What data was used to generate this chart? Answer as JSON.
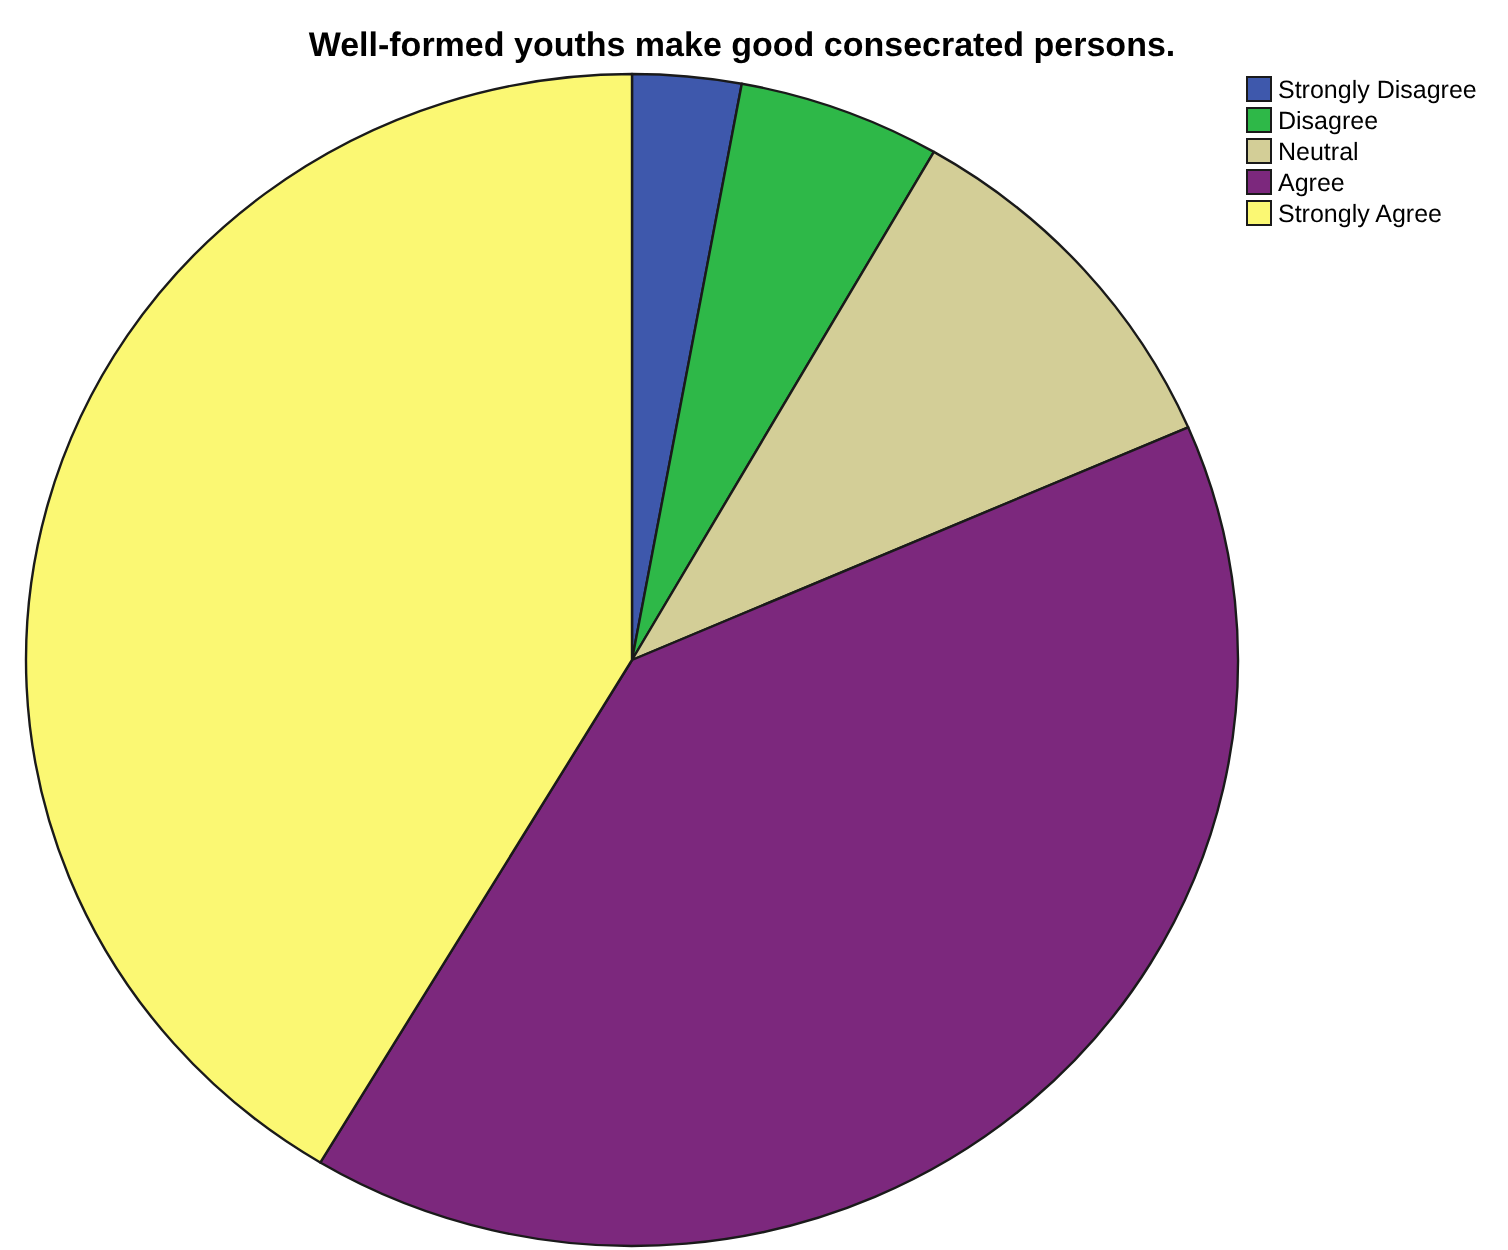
{
  "chart_data": {
    "type": "pie",
    "title": "Well-formed youths make good consecrated persons.",
    "categories": [
      "Strongly Disagree",
      "Disagree",
      "Neutral",
      "Agree",
      "Strongly Agree"
    ],
    "values": [
      2.9,
      5.4,
      10.2,
      40.1,
      41.4
    ],
    "colors": [
      "#3e58ac",
      "#2eb848",
      "#d3ce97",
      "#7c287d",
      "#fbf873"
    ],
    "legend": "top right"
  }
}
